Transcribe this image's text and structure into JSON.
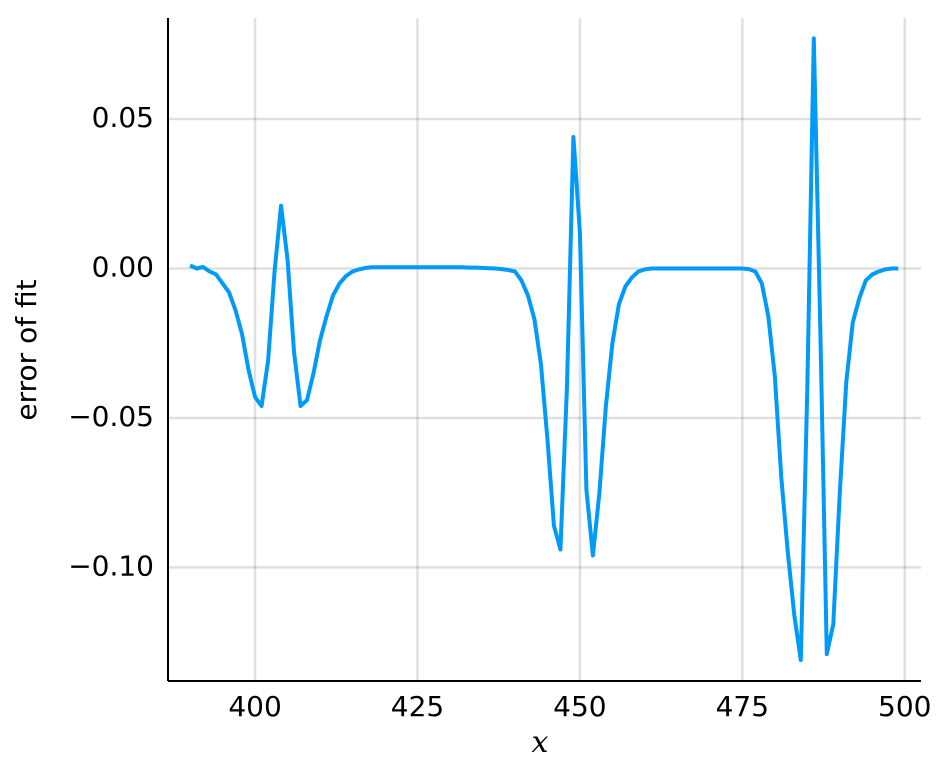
{
  "chart_data": {
    "type": "line",
    "xlabel": "x",
    "ylabel": "error of fit",
    "x": [
      390,
      391,
      392,
      393,
      394,
      395,
      396,
      397,
      398,
      399,
      400,
      401,
      402,
      403,
      404,
      405,
      406,
      407,
      408,
      409,
      410,
      411,
      412,
      413,
      414,
      415,
      416,
      417,
      418,
      419,
      420,
      421,
      422,
      423,
      424,
      425,
      426,
      427,
      428,
      429,
      430,
      431,
      432,
      433,
      434,
      435,
      436,
      437,
      438,
      439,
      440,
      441,
      442,
      443,
      444,
      445,
      446,
      447,
      448,
      449,
      450,
      451,
      452,
      453,
      454,
      455,
      456,
      457,
      458,
      459,
      460,
      461,
      462,
      463,
      464,
      465,
      466,
      467,
      468,
      469,
      470,
      471,
      472,
      473,
      474,
      475,
      476,
      477,
      478,
      479,
      480,
      481,
      482,
      483,
      484,
      485,
      486,
      487,
      488,
      489,
      490,
      491,
      492,
      493,
      494,
      495,
      496,
      497,
      498,
      499
    ],
    "series": [
      {
        "color": "#009af9",
        "values": [
          0.001,
          0.0,
          0.0005,
          -0.001,
          -0.002,
          -0.005,
          -0.008,
          -0.014,
          -0.022,
          -0.034,
          -0.043,
          -0.046,
          -0.031,
          -0.001,
          0.021,
          0.003,
          -0.028,
          -0.046,
          -0.044,
          -0.035,
          -0.024,
          -0.016,
          -0.009,
          -0.005,
          -0.0025,
          -0.001,
          -0.0003,
          0.0002,
          0.0004,
          0.0004,
          0.0004,
          0.0004,
          0.0004,
          0.0004,
          0.0004,
          0.0004,
          0.0004,
          0.0004,
          0.0004,
          0.0004,
          0.0004,
          0.0004,
          0.0004,
          0.0003,
          0.0003,
          0.0002,
          0.0001,
          0.0,
          -0.0002,
          -0.0005,
          -0.001,
          -0.004,
          -0.009,
          -0.017,
          -0.032,
          -0.057,
          -0.086,
          -0.094,
          -0.04,
          0.044,
          0.012,
          -0.074,
          -0.096,
          -0.075,
          -0.046,
          -0.025,
          -0.012,
          -0.006,
          -0.003,
          -0.001,
          -0.0003,
          0,
          0,
          0,
          0,
          0,
          0,
          0,
          0,
          0,
          0,
          0,
          0,
          0,
          0,
          0,
          -0.0002,
          -0.001,
          -0.005,
          -0.016,
          -0.036,
          -0.07,
          -0.095,
          -0.116,
          -0.131,
          -0.04,
          0.077,
          -0.02,
          -0.129,
          -0.119,
          -0.075,
          -0.038,
          -0.018,
          -0.01,
          -0.004,
          -0.002,
          -0.001,
          -0.0003,
          0,
          0
        ]
      }
    ],
    "xlim": [
      386.6,
      502.5
    ],
    "xticks": [
      400,
      425,
      450,
      475,
      500
    ],
    "ylim": [
      -0.138,
      0.0838
    ],
    "yticks": [
      {
        "value": -0.1,
        "label": "−0.10"
      },
      {
        "value": -0.05,
        "label": "−0.05"
      },
      {
        "value": 0,
        "label": "0.00"
      },
      {
        "value": 0.05,
        "label": "0.05"
      }
    ],
    "grid": true
  }
}
